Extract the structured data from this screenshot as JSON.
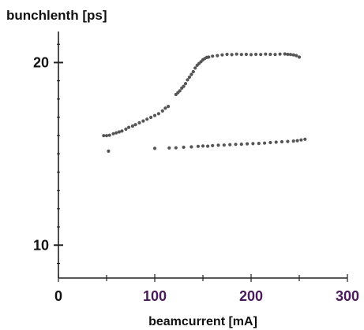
{
  "chart_data": {
    "type": "scatter",
    "title": "bunchlenth [ps]",
    "xlabel": "beamcurrent [mA]",
    "ylabel": "bunchlenth [ps]",
    "xlim": [
      0,
      300
    ],
    "ylim": [
      8.2,
      21.7
    ],
    "grid": false,
    "x_ticks": [
      {
        "value": 0,
        "label": "0",
        "color": "#111111"
      },
      {
        "value": 100,
        "label": "100",
        "color": "#4a1a5a"
      },
      {
        "value": 200,
        "label": "200",
        "color": "#4a1a5a"
      },
      {
        "value": 300,
        "label": "300",
        "color": "#4a1a5a"
      }
    ],
    "x_minor_ticks": [
      50,
      150,
      250
    ],
    "y_ticks": [
      {
        "value": 10,
        "label": "10",
        "color": "#111111"
      },
      {
        "value": 20,
        "label": "20",
        "color": "#111111"
      }
    ],
    "y_tick_mark_color": "#5a1a6a",
    "marker_color": "#555555",
    "series": [
      {
        "points": [
          [
            47,
            16.0
          ],
          [
            50,
            16.0
          ],
          [
            53,
            16.02
          ],
          [
            57,
            16.1
          ],
          [
            60,
            16.15
          ],
          [
            63,
            16.2
          ],
          [
            66,
            16.25
          ],
          [
            70,
            16.35
          ],
          [
            73,
            16.45
          ],
          [
            77,
            16.52
          ],
          [
            80,
            16.6
          ],
          [
            84,
            16.7
          ],
          [
            88,
            16.8
          ],
          [
            92,
            16.9
          ],
          [
            96,
            17.0
          ],
          [
            100,
            17.1
          ],
          [
            104,
            17.2
          ],
          [
            108,
            17.35
          ],
          [
            111,
            17.5
          ],
          [
            114,
            17.6
          ],
          [
            122,
            18.25
          ],
          [
            124,
            18.35
          ],
          [
            126,
            18.45
          ],
          [
            128,
            18.6
          ],
          [
            130,
            18.7
          ],
          [
            132,
            18.85
          ],
          [
            134,
            19.05
          ],
          [
            136,
            19.2
          ],
          [
            138,
            19.35
          ],
          [
            140,
            19.5
          ],
          [
            142,
            19.7
          ],
          [
            144,
            19.85
          ],
          [
            146,
            19.95
          ],
          [
            148,
            20.05
          ],
          [
            150,
            20.15
          ],
          [
            152,
            20.22
          ],
          [
            154,
            20.28
          ],
          [
            156,
            20.3
          ],
          [
            160,
            20.35
          ],
          [
            165,
            20.38
          ],
          [
            170,
            20.42
          ],
          [
            175,
            20.45
          ],
          [
            180,
            20.43
          ],
          [
            185,
            20.46
          ],
          [
            190,
            20.44
          ],
          [
            195,
            20.45
          ],
          [
            200,
            20.43
          ],
          [
            205,
            20.45
          ],
          [
            210,
            20.44
          ],
          [
            215,
            20.46
          ],
          [
            220,
            20.45
          ],
          [
            225,
            20.44
          ],
          [
            230,
            20.46
          ],
          [
            235,
            20.47
          ],
          [
            238,
            20.45
          ],
          [
            241,
            20.44
          ],
          [
            244,
            20.42
          ],
          [
            247,
            20.38
          ],
          [
            250,
            20.3
          ]
        ]
      },
      {
        "points": [
          [
            52,
            15.15
          ],
          [
            100,
            15.3
          ],
          [
            115,
            15.32
          ],
          [
            122,
            15.33
          ],
          [
            130,
            15.36
          ],
          [
            138,
            15.38
          ],
          [
            145,
            15.41
          ],
          [
            150,
            15.43
          ],
          [
            155,
            15.42
          ],
          [
            160,
            15.45
          ],
          [
            166,
            15.47
          ],
          [
            172,
            15.48
          ],
          [
            178,
            15.5
          ],
          [
            184,
            15.52
          ],
          [
            190,
            15.53
          ],
          [
            196,
            15.55
          ],
          [
            202,
            15.56
          ],
          [
            208,
            15.57
          ],
          [
            214,
            15.59
          ],
          [
            220,
            15.62
          ],
          [
            226,
            15.64
          ],
          [
            232,
            15.66
          ],
          [
            238,
            15.68
          ],
          [
            244,
            15.7
          ],
          [
            248,
            15.72
          ],
          [
            252,
            15.76
          ],
          [
            256,
            15.8
          ]
        ]
      }
    ]
  }
}
